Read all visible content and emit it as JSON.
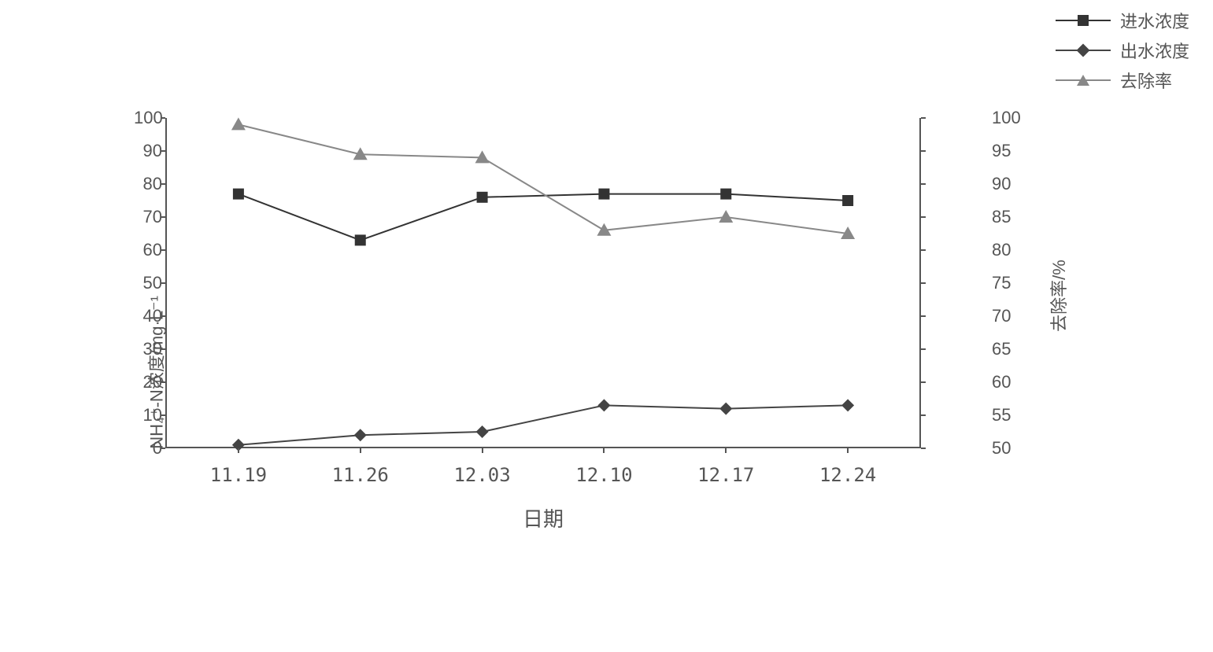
{
  "chart": {
    "type": "line-dual-axis",
    "background_color": "#ffffff",
    "axis_color": "#555555",
    "tick_fontsize": 22,
    "label_fontsize": 22,
    "x": {
      "categories": [
        "11.19",
        "11.26",
        "12.03",
        "12.10",
        "12.17",
        "12.24"
      ],
      "label": "日期"
    },
    "y_left": {
      "min": 0,
      "max": 100,
      "tick_step": 10,
      "ticks": [
        0,
        10,
        20,
        30,
        40,
        50,
        60,
        70,
        80,
        90,
        100
      ],
      "label": "NH₄⁺-N浓度/mg·L⁻¹"
    },
    "y_right": {
      "min": 50,
      "max": 100,
      "tick_step": 5,
      "ticks": [
        50,
        55,
        60,
        65,
        70,
        75,
        80,
        85,
        90,
        95,
        100
      ],
      "label": "去除率/%"
    },
    "series": [
      {
        "name": "进水浓度",
        "axis": "left",
        "marker": "square",
        "color": "#333333",
        "line_width": 2,
        "values": [
          77,
          63,
          76,
          77,
          77,
          75
        ]
      },
      {
        "name": "出水浓度",
        "axis": "left",
        "marker": "diamond",
        "color": "#444444",
        "line_width": 2,
        "values": [
          1,
          4,
          5,
          13,
          12,
          13
        ]
      },
      {
        "name": "去除率",
        "axis": "right",
        "marker": "triangle",
        "color": "#888888",
        "line_width": 2,
        "values": [
          99,
          94.5,
          94,
          83,
          85,
          82.5
        ]
      }
    ],
    "legend": {
      "position": "top-right",
      "items": [
        "进水浓度",
        "出水浓度",
        "去除率"
      ]
    }
  }
}
